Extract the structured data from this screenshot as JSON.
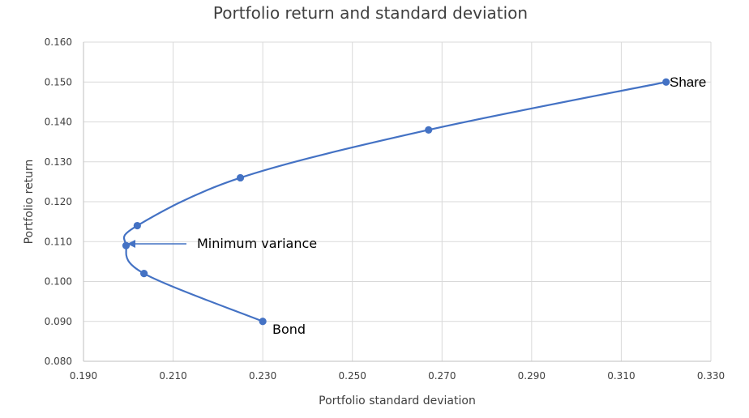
{
  "chart_data": {
    "type": "scatter",
    "title": "Portfolio return and standard deviation",
    "xlabel": "Portfolio standard deviation",
    "ylabel": "Portfolio return",
    "xlim": [
      0.19,
      0.33
    ],
    "ylim": [
      0.08,
      0.16
    ],
    "x_ticks": [
      "0.190",
      "0.210",
      "0.230",
      "0.250",
      "0.270",
      "0.290",
      "0.310",
      "0.330"
    ],
    "y_ticks": [
      "0.080",
      "0.090",
      "0.100",
      "0.110",
      "0.120",
      "0.130",
      "0.140",
      "0.150",
      "0.160"
    ],
    "grid": true,
    "legend": "none",
    "series_color": "#4472C4",
    "series": [
      {
        "x": [
          0.23,
          0.2035,
          0.1995,
          0.202,
          0.225,
          0.267,
          0.32
        ],
        "y": [
          0.09,
          0.102,
          0.109,
          0.114,
          0.126,
          0.138,
          0.15
        ]
      }
    ],
    "annotations": {
      "share": "Share",
      "bond": "Bond",
      "minimum_variance": "Minimum variance"
    }
  }
}
